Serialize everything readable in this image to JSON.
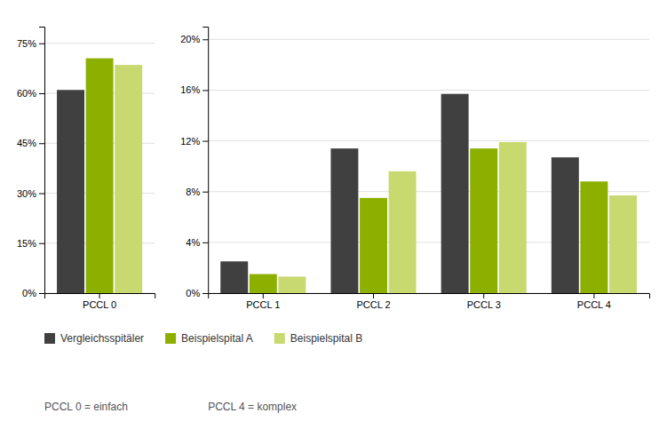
{
  "chart_data": [
    {
      "type": "bar",
      "categories": [
        "PCCL 0"
      ],
      "series": [
        {
          "name": "Vergleichsspitäler",
          "color": "#404040",
          "values": [
            0.61
          ]
        },
        {
          "name": "Beispielspital A",
          "color": "#8db000",
          "values": [
            0.705
          ]
        },
        {
          "name": "Beispielspital B",
          "color": "#c8d96f",
          "values": [
            0.685
          ]
        }
      ],
      "ylim": [
        0,
        0.8
      ],
      "yticks": [
        {
          "value": 0,
          "label": "0%"
        },
        {
          "value": 0.15,
          "label": "15%"
        },
        {
          "value": 0.3,
          "label": "30%"
        },
        {
          "value": 0.45,
          "label": "45%"
        },
        {
          "value": 0.6,
          "label": "60%"
        },
        {
          "value": 0.75,
          "label": "75%"
        }
      ],
      "grid": true,
      "legend": "bottom",
      "annotations": [
        "PCCL 0 = einfach"
      ]
    },
    {
      "type": "bar",
      "categories": [
        "PCCL 1",
        "PCCL 2",
        "PCCL 3",
        "PCCL 4"
      ],
      "series": [
        {
          "color": "#404040",
          "values": [
            0.025,
            0.114,
            0.157,
            0.107
          ]
        },
        {
          "color": "#8db000",
          "values": [
            0.015,
            0.075,
            0.114,
            0.088
          ]
        },
        {
          "color": "#c8d96f",
          "values": [
            0.013,
            0.096,
            0.119,
            0.077
          ]
        }
      ],
      "ylim": [
        0,
        0.21
      ],
      "yticks": [
        {
          "value": 0,
          "label": "0%"
        },
        {
          "value": 0.04,
          "label": "4%"
        },
        {
          "value": 0.08,
          "label": "8%"
        },
        {
          "value": 0.12,
          "label": "12%"
        },
        {
          "value": 0.16,
          "label": "16%"
        },
        {
          "value": 0.2,
          "label": "20%"
        }
      ],
      "grid": true,
      "annotations": [
        "PCCL 4 = komplex"
      ]
    }
  ]
}
